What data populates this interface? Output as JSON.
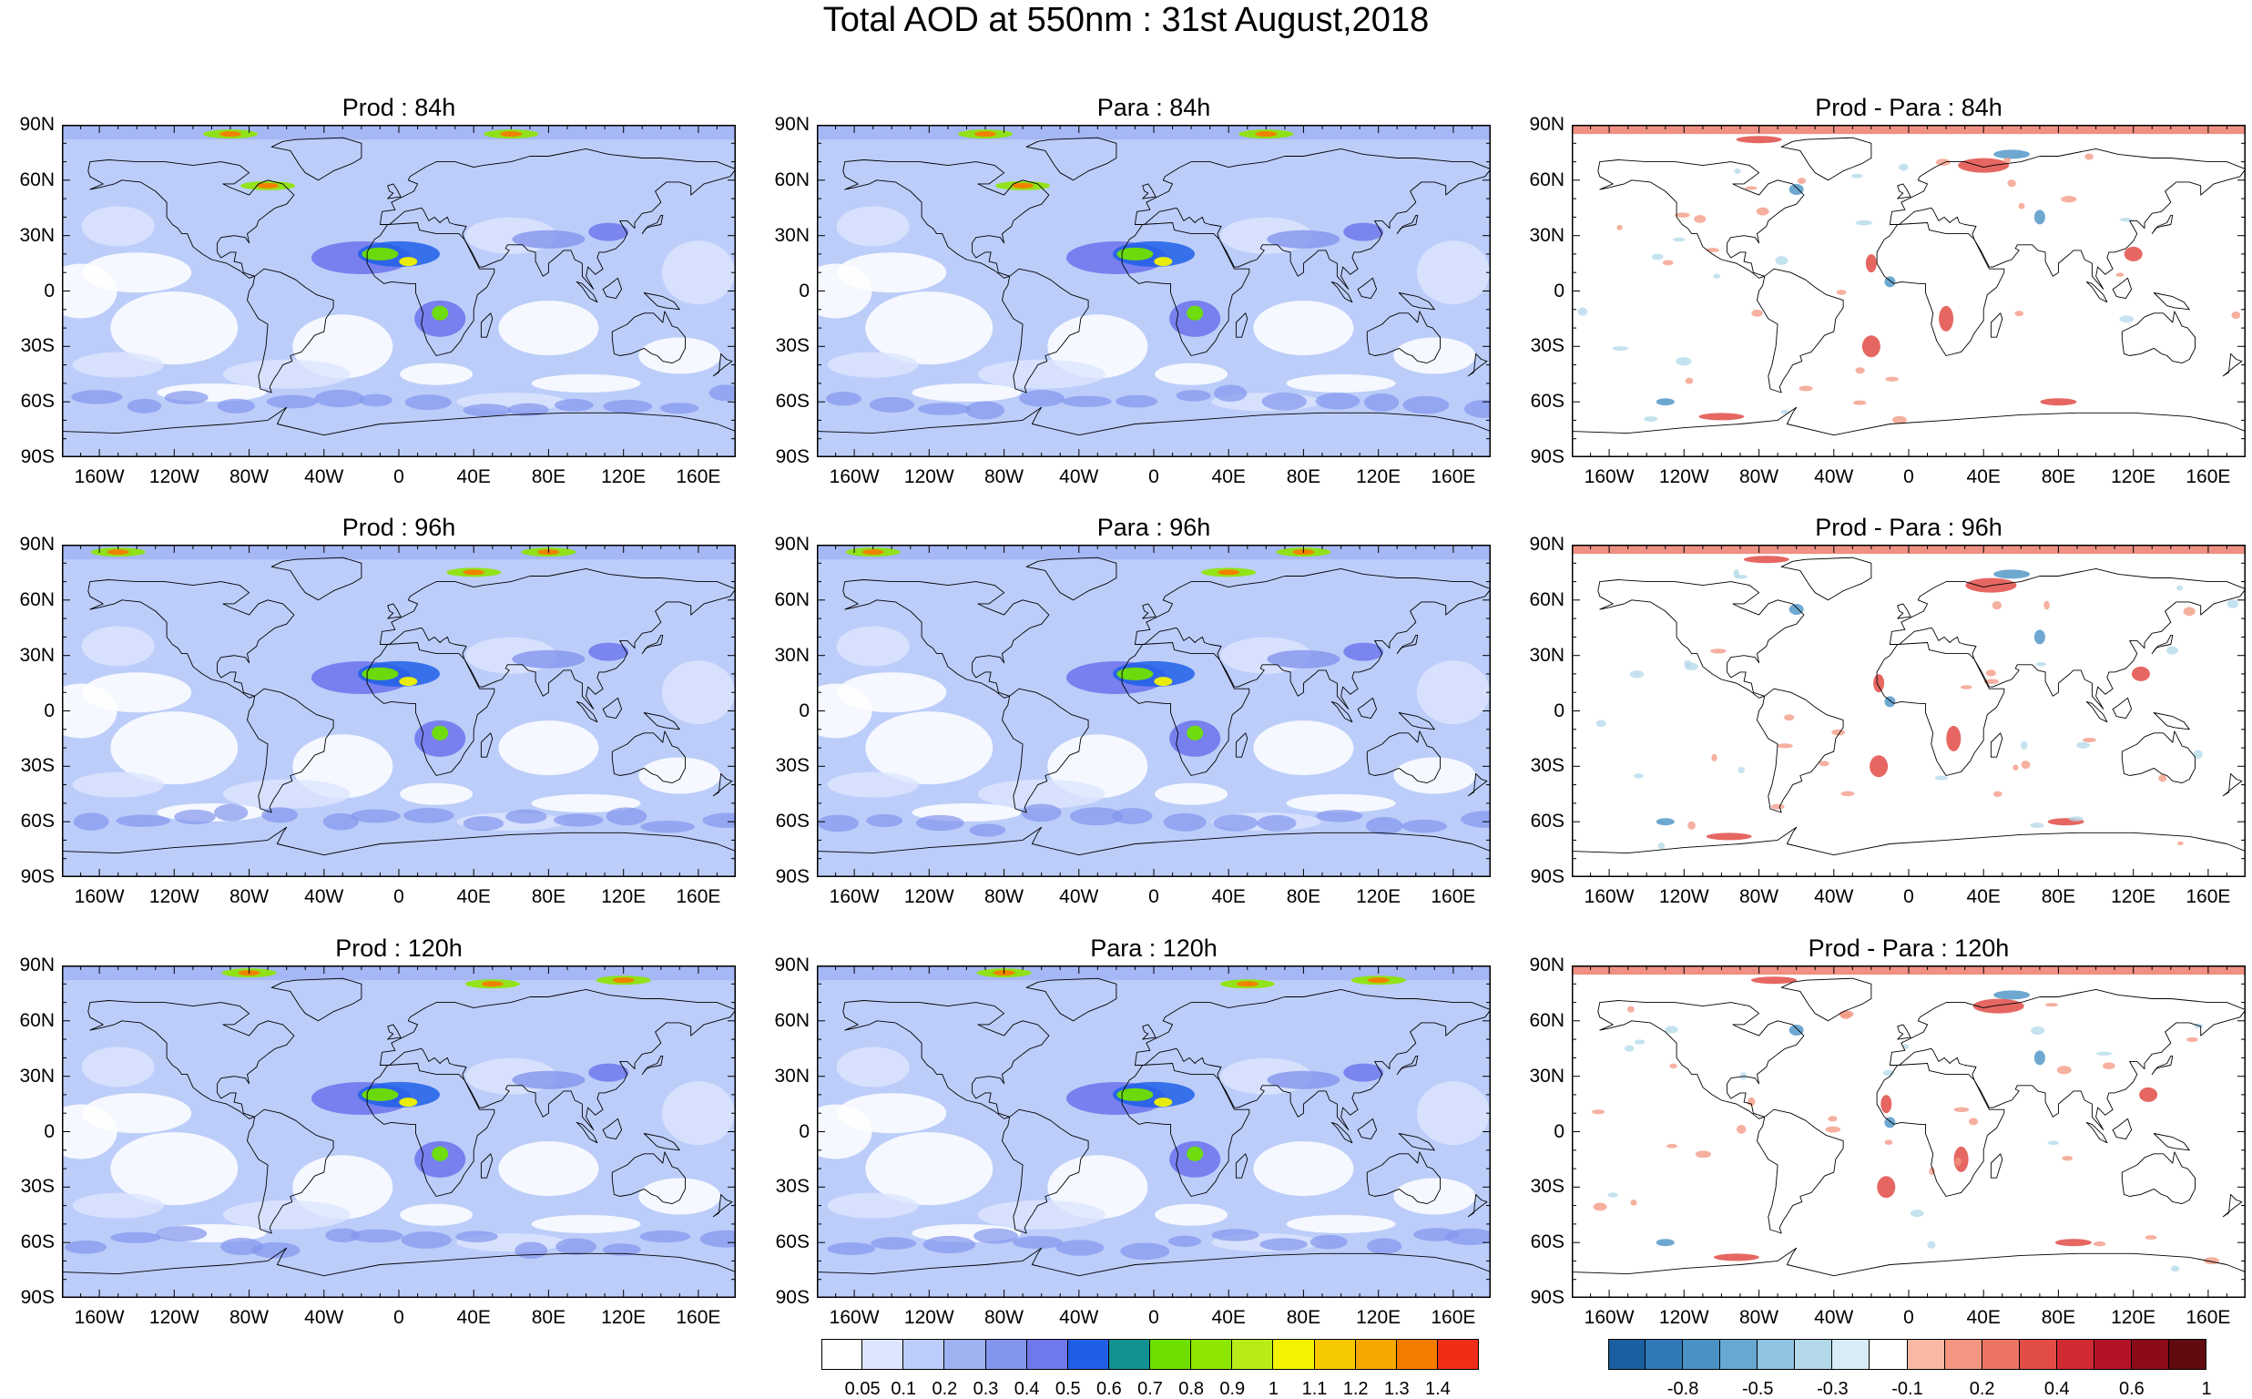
{
  "figure": {
    "title": "Total AOD at 550nm : 31st August,2018"
  },
  "panels": [
    {
      "title": "Prod : 84h",
      "kind": "aod"
    },
    {
      "title": "Para : 84h",
      "kind": "aod"
    },
    {
      "title": "Prod - Para : 84h",
      "kind": "diff"
    },
    {
      "title": "Prod : 96h",
      "kind": "aod"
    },
    {
      "title": "Para : 96h",
      "kind": "aod"
    },
    {
      "title": "Prod - Para : 96h",
      "kind": "diff"
    },
    {
      "title": "Prod : 120h",
      "kind": "aod"
    },
    {
      "title": "Para : 120h",
      "kind": "aod"
    },
    {
      "title": "Prod - Para : 120h",
      "kind": "diff"
    }
  ],
  "axes": {
    "lat_labels": [
      "90N",
      "60N",
      "30N",
      "0",
      "30S",
      "60S",
      "90S"
    ],
    "lon_labels": [
      "160W",
      "120W",
      "80W",
      "40W",
      "0",
      "40E",
      "80E",
      "120E",
      "160E"
    ]
  },
  "colorbars": {
    "aod": {
      "labels": [
        "0.05",
        "0.1",
        "0.2",
        "0.3",
        "0.4",
        "0.5",
        "0.6",
        "0.7",
        "0.8",
        "0.9",
        "1",
        "1.1",
        "1.2",
        "1.3",
        "1.4"
      ],
      "colors": [
        "#ffffff",
        "#dde6ff",
        "#bccdfa",
        "#9fb2f2",
        "#8395ed",
        "#6f78ec",
        "#1f5fe8",
        "#129292",
        "#6ee000",
        "#8ee600",
        "#b7ec19",
        "#f4f200",
        "#f6c800",
        "#f6a700",
        "#f67c00",
        "#f02e17"
      ]
    },
    "diff": {
      "labels": [
        "-0.8",
        "-0.5",
        "-0.3",
        "-0.1",
        "0.2",
        "0.4",
        "0.6",
        "1"
      ],
      "colors": [
        "#1a5fa0",
        "#2f79b6",
        "#4a92c6",
        "#66a8d2",
        "#8fc3df",
        "#b2d8ea",
        "#d7ecf5",
        "#ffffff",
        "#f8b8a2",
        "#f39580",
        "#eb7464",
        "#e24c46",
        "#d12a32",
        "#b41326",
        "#8c0b1b",
        "#610a0f"
      ]
    }
  },
  "chart_data": {
    "type": "heatmap",
    "title": "Total AOD at 550nm : 31st August,2018",
    "variable": "Total AOD at 550nm",
    "date": "31st August,2018",
    "x": {
      "ticks": [
        "160W",
        "120W",
        "80W",
        "40W",
        "0",
        "40E",
        "80E",
        "120E",
        "160E"
      ],
      "range": [
        -180,
        180
      ]
    },
    "y": {
      "ticks": [
        "90N",
        "60N",
        "30N",
        "0",
        "30S",
        "60S",
        "90S"
      ],
      "range": [
        -90,
        90
      ]
    },
    "panels": [
      "Prod : 84h",
      "Para : 84h",
      "Prod - Para : 84h",
      "Prod : 96h",
      "Para : 96h",
      "Prod - Para : 96h",
      "Prod : 120h",
      "Para : 120h",
      "Prod - Para : 120h"
    ],
    "aod_levels": [
      0.05,
      0.1,
      0.2,
      0.3,
      0.4,
      0.5,
      0.6,
      0.7,
      0.8,
      0.9,
      1,
      1.1,
      1.2,
      1.3,
      1.4
    ],
    "diff_levels": [
      -0.8,
      -0.5,
      -0.3,
      -0.1,
      0.2,
      0.4,
      0.6,
      1
    ]
  }
}
